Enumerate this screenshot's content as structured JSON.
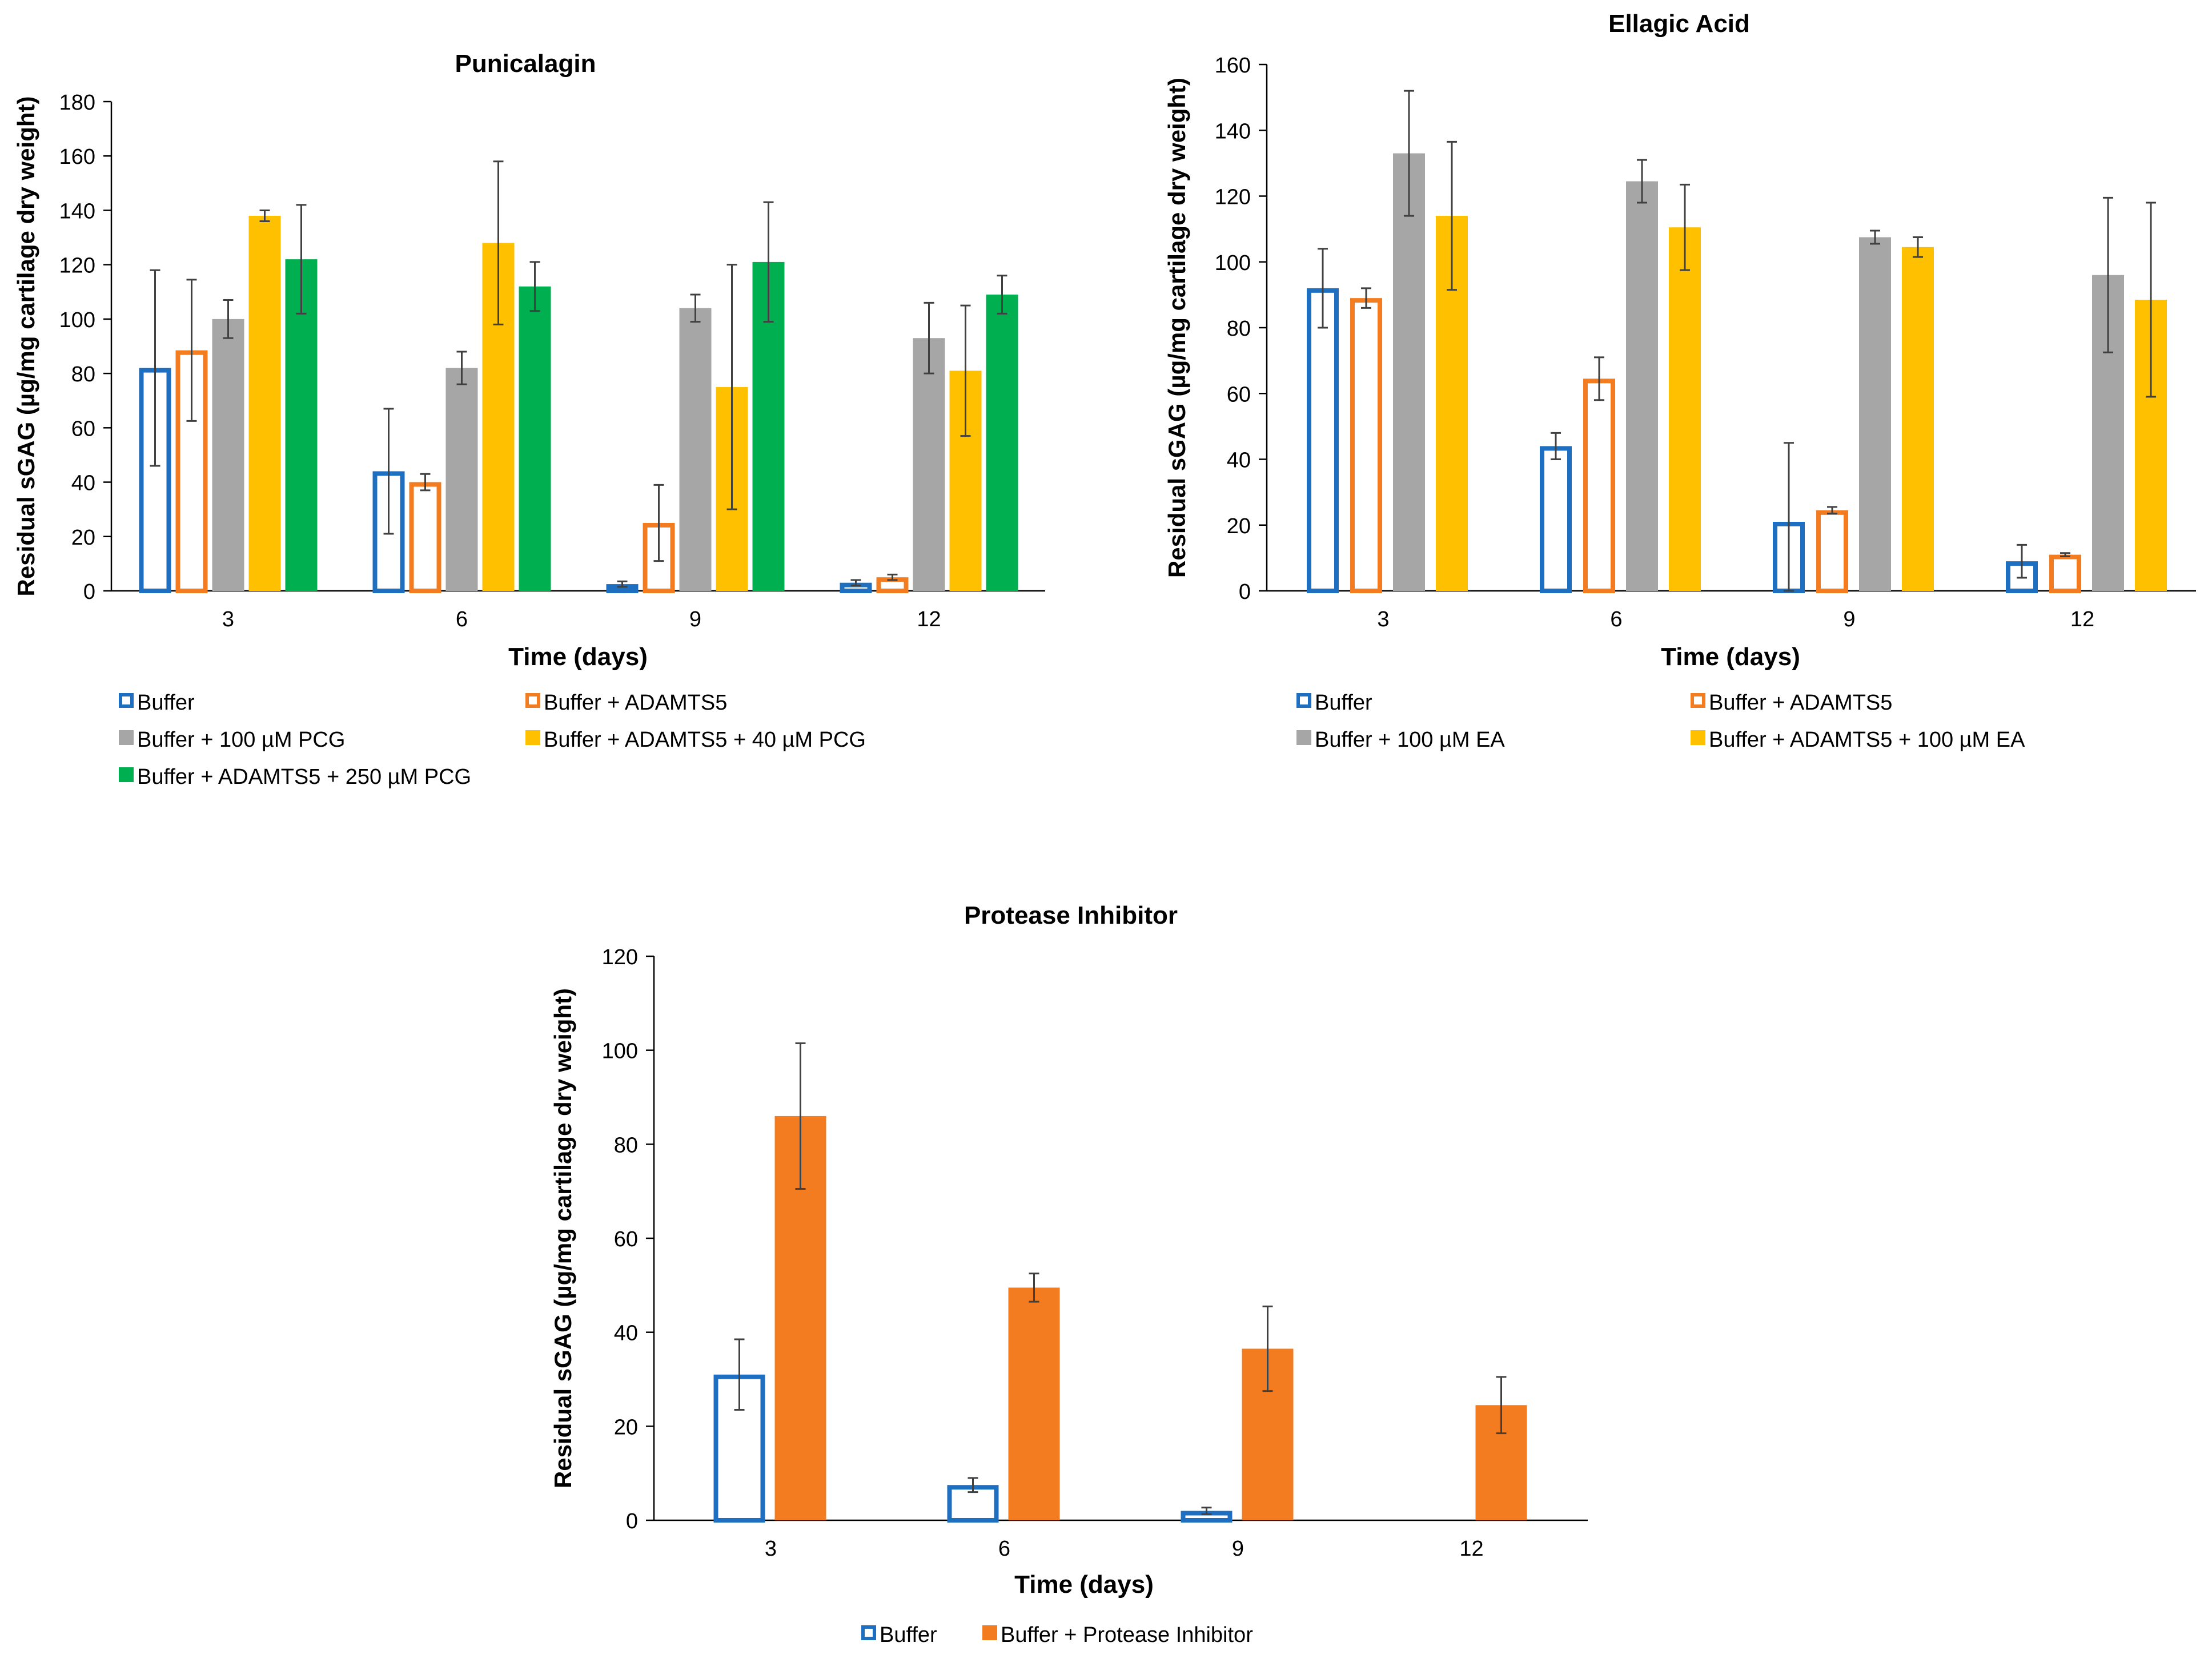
{
  "chart_data": [
    {
      "type": "bar",
      "title": "Punicalagin",
      "xlabel": "Time (days)",
      "ylabel": "Residual sGAG (µg/mg cartilage dry weight)",
      "ylim": [
        0,
        180
      ],
      "ystep": 20,
      "categories": [
        "3",
        "6",
        "9",
        "12"
      ],
      "legend_position": "bottom",
      "series": [
        {
          "name": "Buffer",
          "style": "outline",
          "color": "#1F6FC0",
          "values": [
            82,
            44,
            2.5,
            3
          ],
          "errors": [
            36,
            23,
            1,
            1
          ]
        },
        {
          "name": "Buffer + ADAMTS5",
          "style": "outline",
          "color": "#F47C20",
          "values": [
            88.5,
            40,
            25,
            5
          ],
          "errors": [
            26,
            3,
            14,
            1
          ]
        },
        {
          "name": "Buffer + 100 µM PCG",
          "style": "filled",
          "color": "#A6A6A6",
          "values": [
            100,
            82,
            104,
            93
          ],
          "errors": [
            7,
            6,
            5,
            13
          ]
        },
        {
          "name": "Buffer + ADAMTS5 + 40 µM PCG",
          "style": "filled",
          "color": "#FFC000",
          "values": [
            138,
            128,
            75,
            81
          ],
          "errors": [
            2,
            30,
            45,
            24
          ]
        },
        {
          "name": "Buffer + ADAMTS5 + 250 µM PCG",
          "style": "filled",
          "color": "#00B050",
          "values": [
            122,
            112,
            121,
            109
          ],
          "errors": [
            20,
            9,
            22,
            7
          ]
        }
      ]
    },
    {
      "type": "bar",
      "title": "Ellagic Acid",
      "xlabel": "Time (days)",
      "ylabel": "Residual sGAG (µg/mg cartilage dry weight)",
      "ylim": [
        0,
        160
      ],
      "ystep": 20,
      "categories": [
        "3",
        "6",
        "9",
        "12"
      ],
      "legend_position": "bottom",
      "series": [
        {
          "name": "Buffer",
          "style": "outline",
          "color": "#1F6FC0",
          "values": [
            92,
            44,
            21,
            9
          ],
          "errors": [
            12,
            4,
            24,
            5
          ]
        },
        {
          "name": "Buffer + ADAMTS5",
          "style": "outline",
          "color": "#F47C20",
          "values": [
            89,
            64.5,
            24.5,
            11
          ],
          "errors": [
            3,
            6.5,
            1,
            0.5
          ]
        },
        {
          "name": "Buffer + 100 µM EA",
          "style": "filled",
          "color": "#A6A6A6",
          "values": [
            133,
            124.5,
            107.5,
            96
          ],
          "errors": [
            19,
            6.5,
            2,
            23.5
          ]
        },
        {
          "name": "Buffer + ADAMTS5 + 100 µM EA",
          "style": "filled",
          "color": "#FFC000",
          "values": [
            114,
            110.5,
            104.5,
            88.5
          ],
          "errors": [
            22.5,
            13,
            3,
            29.5
          ]
        }
      ]
    },
    {
      "type": "bar",
      "title": "Protease Inhibitor",
      "xlabel": "Time (days)",
      "ylabel": "Residual sGAG (µg/mg cartilage dry weight)",
      "ylim": [
        0,
        120
      ],
      "ystep": 20,
      "categories": [
        "3",
        "6",
        "9",
        "12"
      ],
      "legend_position": "bottom",
      "series": [
        {
          "name": "Buffer",
          "style": "outline",
          "color": "#1F6FC0",
          "values": [
            31,
            7.5,
            2,
            0.3
          ],
          "errors": [
            7.5,
            1.5,
            0.7,
            0
          ]
        },
        {
          "name": "Buffer + Protease Inhibitor",
          "style": "filled",
          "color": "#F47C20",
          "values": [
            86,
            49.5,
            36.5,
            24.5
          ],
          "errors": [
            15.5,
            3,
            9,
            6
          ]
        }
      ]
    }
  ]
}
